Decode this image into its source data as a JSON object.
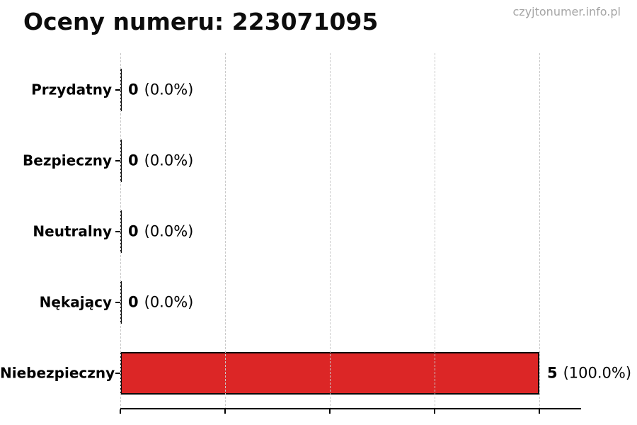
{
  "watermark": "czyjtonumer.info.pl",
  "chart_data": {
    "type": "bar",
    "orientation": "horizontal",
    "title": "Oceny numeru: 223071095",
    "categories": [
      "Przydatny",
      "Bezpieczny",
      "Neutralny",
      "Nękający",
      "Niebezpieczny"
    ],
    "values": [
      0,
      0,
      0,
      0,
      5
    ],
    "value_labels": [
      {
        "count": "0",
        "percent": "(0.0%)"
      },
      {
        "count": "0",
        "percent": "(0.0%)"
      },
      {
        "count": "0",
        "percent": "(0.0%)"
      },
      {
        "count": "0",
        "percent": "(0.0%)"
      },
      {
        "count": "5",
        "percent": "(100.0%)"
      }
    ],
    "xlabel": "",
    "ylabel": "",
    "xlim": [
      0,
      5.49
    ],
    "xticks": [
      0,
      1.25,
      2.5,
      3.75,
      5
    ],
    "xtick_labels_visible": false,
    "grid": true,
    "grid_style": "dashed",
    "grid_over_bars": true,
    "legend": false,
    "bar_color": "#dc2626",
    "bar_edge_color": "#0a0a0a",
    "title_color": "#0d0d0d",
    "watermark_color": "#a5a5a5"
  }
}
